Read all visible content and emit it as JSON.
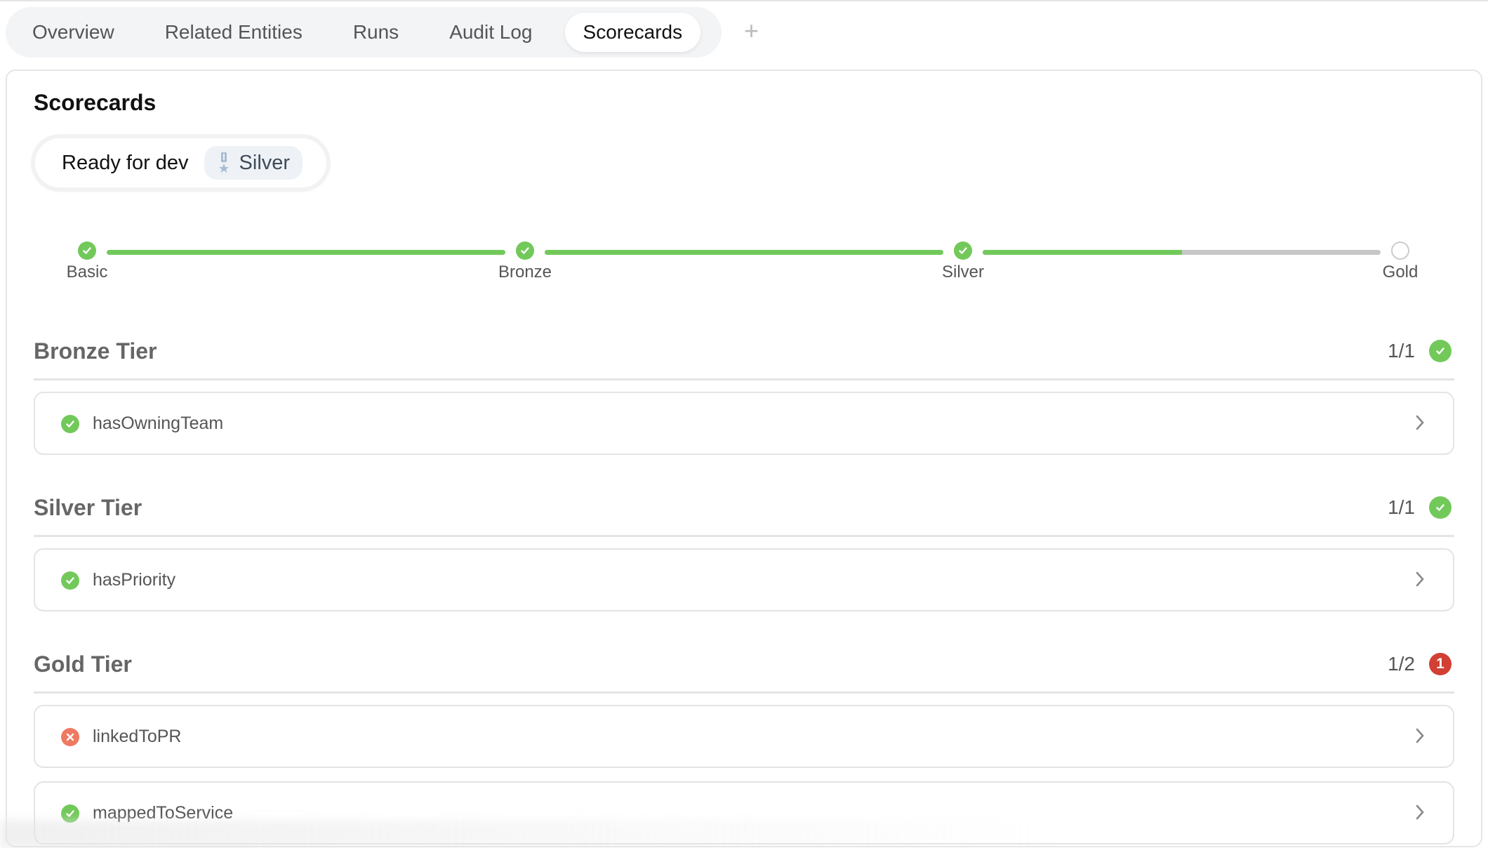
{
  "tabs": [
    {
      "label": "Overview"
    },
    {
      "label": "Related Entities"
    },
    {
      "label": "Runs"
    },
    {
      "label": "Audit Log"
    },
    {
      "label": "Scorecards",
      "active": true
    }
  ],
  "add_tab_label": "+",
  "section_title": "Scorecards",
  "scorecard": {
    "name": "Ready for dev",
    "level": "Silver",
    "level_icon": "medal-icon"
  },
  "levels": [
    {
      "label": "Basic",
      "achieved": true,
      "progress_to_next": 1
    },
    {
      "label": "Bronze",
      "achieved": true,
      "progress_to_next": 1
    },
    {
      "label": "Silver",
      "achieved": true,
      "progress_to_next": 0.5
    },
    {
      "label": "Gold",
      "achieved": false
    }
  ],
  "tiers": [
    {
      "name": "Bronze Tier",
      "count": "1/1",
      "status": "passed",
      "badge": "",
      "rules": [
        {
          "name": "hasOwningTeam",
          "status": "passed"
        }
      ]
    },
    {
      "name": "Silver Tier",
      "count": "1/1",
      "status": "passed",
      "badge": "",
      "rules": [
        {
          "name": "hasPriority",
          "status": "passed"
        }
      ]
    },
    {
      "name": "Gold Tier",
      "count": "1/2",
      "status": "failed",
      "badge": "1",
      "rules": [
        {
          "name": "linkedToPR",
          "status": "failed"
        },
        {
          "name": "mappedToService",
          "status": "passed"
        }
      ]
    }
  ],
  "colors": {
    "pass": "#72c95a",
    "fail_rule": "#ee7a62",
    "fail_badge": "#d23f33",
    "track": "#c6c6c6"
  }
}
